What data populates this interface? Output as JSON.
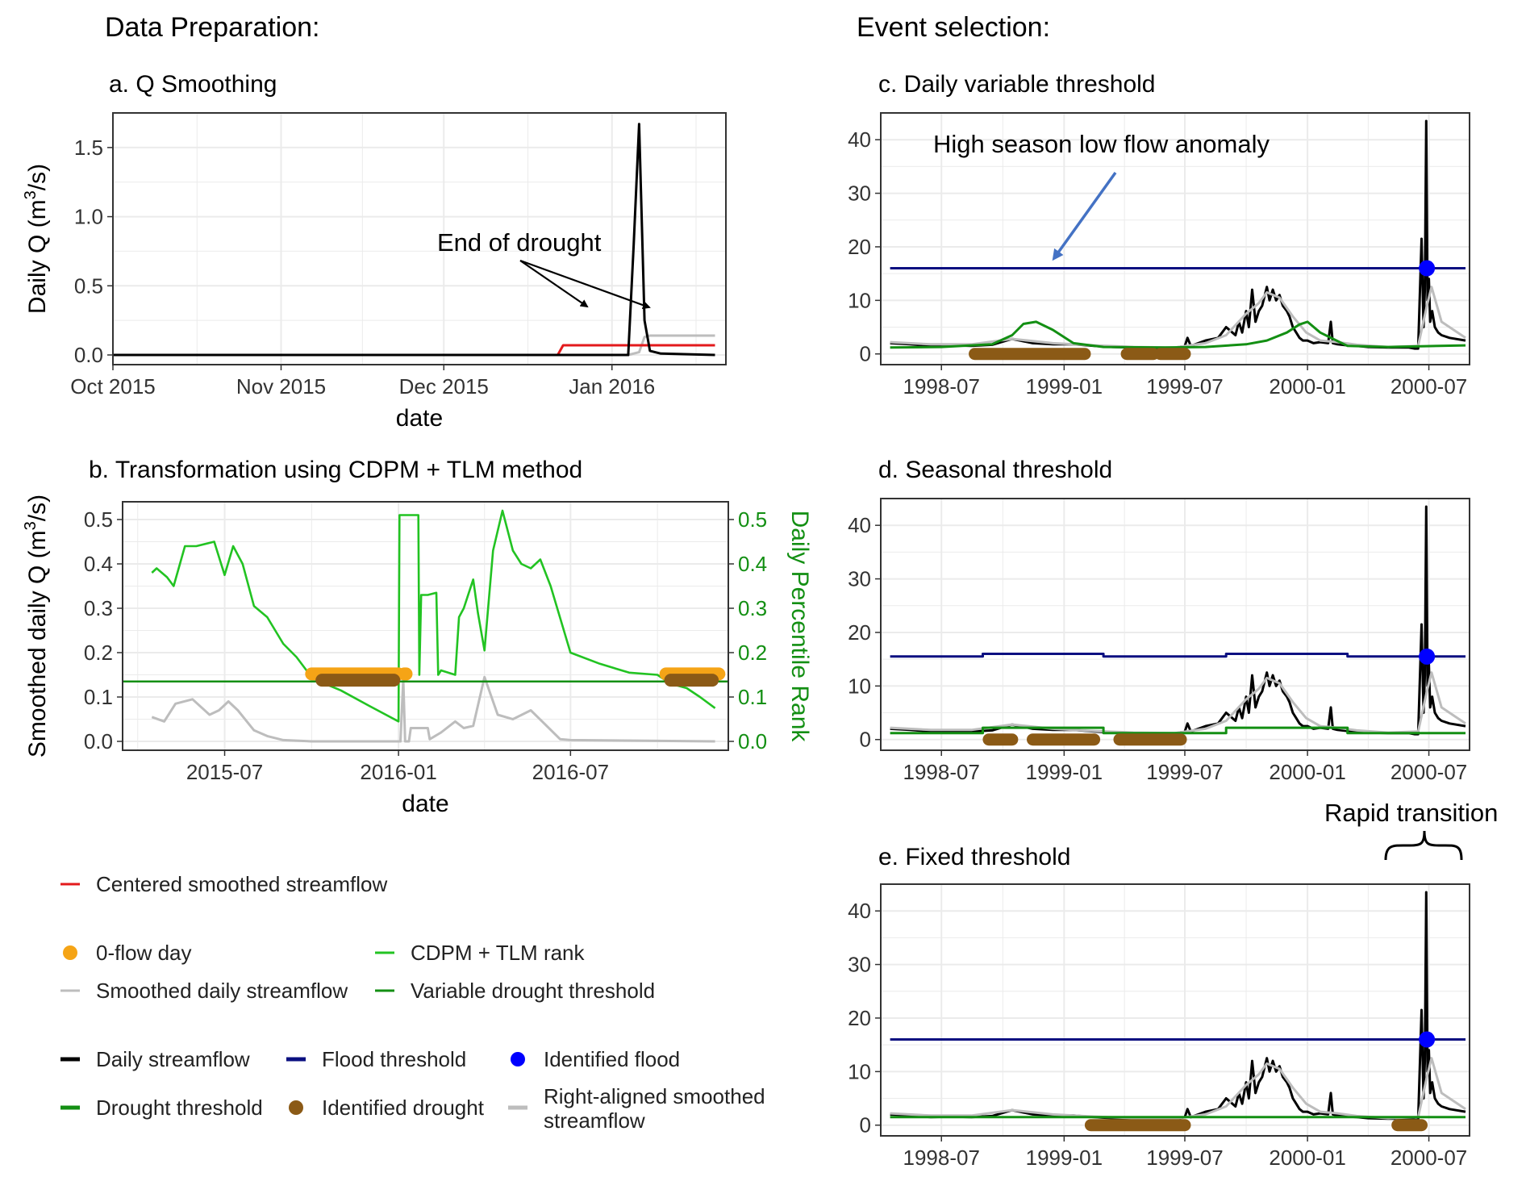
{
  "headers": {
    "left": "Data Preparation:",
    "right": "Event selection:"
  },
  "colors": {
    "daily": "#000000",
    "smooth": "#bdbdbd",
    "centered": "#e31a1c",
    "rank": "#22c322",
    "threshold": "#138f13",
    "flood": "#0a0f80",
    "flood_point": "#0000ff",
    "drought": "#8b5a16",
    "zero_flow": "#f5a416",
    "arrow_blue": "#4472c4"
  },
  "chart_data": [
    {
      "id": "a",
      "type": "line",
      "title": "a. Q Smoothing",
      "xlabel": "date",
      "ylabel": "Daily Q (m³/s)",
      "ylabel_parts": [
        "Daily Q (m",
        "3",
        "/s)"
      ],
      "xlim": [
        "2015-10-01",
        "2016-01-22"
      ],
      "ylim": [
        -0.07,
        1.75
      ],
      "x_ticks": [
        {
          "value": "2015-10-01",
          "label": "Oct 2015"
        },
        {
          "value": "2015-11-01",
          "label": "Nov 2015"
        },
        {
          "value": "2015-12-01",
          "label": "Dec 2015"
        },
        {
          "value": "2016-01-01",
          "label": "Jan 2016"
        }
      ],
      "y_ticks": [
        0,
        0.5,
        1.0,
        1.5
      ],
      "y_tick_labels": [
        "0.0",
        "0.5",
        "1.0",
        "1.5"
      ],
      "series": [
        {
          "role": "smooth",
          "x": [
            "2015-10-01",
            "2015-12-28",
            "2016-01-04",
            "2016-01-06",
            "2016-01-07",
            "2016-01-08",
            "2016-01-20"
          ],
          "y": [
            0,
            0,
            0,
            0.02,
            0.13,
            0.14,
            0.14
          ]
        },
        {
          "role": "centered",
          "x": [
            "2015-10-01",
            "2015-12-22",
            "2015-12-23",
            "2016-01-20"
          ],
          "y": [
            0,
            0,
            0.07,
            0.07
          ]
        },
        {
          "role": "daily",
          "x": [
            "2015-10-01",
            "2016-01-04",
            "2016-01-05",
            "2016-01-06",
            "2016-01-07",
            "2016-01-08",
            "2016-01-10",
            "2016-01-20"
          ],
          "y": [
            0,
            0,
            0.8,
            1.67,
            0.25,
            0.03,
            0.01,
            0
          ]
        }
      ],
      "annotations": [
        {
          "text": "End of drought"
        }
      ]
    },
    {
      "id": "b",
      "type": "line",
      "title": "b. Transformation using CDPM + TLM method",
      "xlabel": "date",
      "ylabel": "Smoothed daily Q (m³/s)",
      "ylabel_parts": [
        "Smoothed daily Q (m",
        "3",
        "/s)"
      ],
      "y2label": "Daily Percentile Rank",
      "xlim": [
        "2015-03-15",
        "2016-12-15"
      ],
      "ylim": [
        -0.02,
        0.54
      ],
      "x_ticks": [
        {
          "value": "2015-07-01",
          "label": "2015-07"
        },
        {
          "value": "2016-01-01",
          "label": "2016-01"
        },
        {
          "value": "2016-07-01",
          "label": "2016-07"
        }
      ],
      "y_ticks": [
        0,
        0.1,
        0.2,
        0.3,
        0.4,
        0.5
      ],
      "y_tick_labels": [
        "0.0",
        "0.1",
        "0.2",
        "0.3",
        "0.4",
        "0.5"
      ],
      "threshold": 0.135,
      "series": [
        {
          "role": "smooth",
          "x": [
            "2015-04-15",
            "2015-04-28",
            "2015-05-10",
            "2015-05-28",
            "2015-06-15",
            "2015-06-25",
            "2015-07-05",
            "2015-07-15",
            "2015-08-01",
            "2015-08-15",
            "2015-09-01",
            "2015-10-01",
            "2015-11-01",
            "2015-12-01",
            "2016-01-03",
            "2016-01-06",
            "2016-01-08",
            "2016-01-12",
            "2016-01-14",
            "2016-02-01",
            "2016-02-03",
            "2016-02-15",
            "2016-03-01",
            "2016-03-10",
            "2016-03-20",
            "2016-04-01",
            "2016-04-15",
            "2016-05-01",
            "2016-05-20",
            "2016-06-01",
            "2016-06-20",
            "2016-07-01",
            "2016-12-01"
          ],
          "y": [
            0.055,
            0.045,
            0.085,
            0.095,
            0.06,
            0.07,
            0.09,
            0.07,
            0.025,
            0.012,
            0.003,
            0,
            0,
            0,
            0,
            0.14,
            0,
            0,
            0.03,
            0.03,
            0.005,
            0.02,
            0.045,
            0.03,
            0.035,
            0.145,
            0.06,
            0.05,
            0.07,
            0.045,
            0.005,
            0.003,
            0
          ]
        },
        {
          "role": "rank",
          "x": [
            "2015-04-15",
            "2015-04-20",
            "2015-05-01",
            "2015-05-08",
            "2015-05-20",
            "2015-06-01",
            "2015-06-20",
            "2015-07-01",
            "2015-07-10",
            "2015-07-20",
            "2015-08-01",
            "2015-08-15",
            "2015-09-01",
            "2015-09-15",
            "2015-10-01",
            "2015-10-15",
            "2015-11-01",
            "2015-12-01",
            "2016-01-01",
            "2016-01-02",
            "2016-01-22",
            "2016-01-23",
            "2016-01-25",
            "2016-02-01",
            "2016-02-10",
            "2016-02-12",
            "2016-02-15",
            "2016-03-01",
            "2016-03-05",
            "2016-03-10",
            "2016-03-20",
            "2016-03-25",
            "2016-04-01",
            "2016-04-10",
            "2016-04-20",
            "2016-05-01",
            "2016-05-10",
            "2016-05-20",
            "2016-05-30",
            "2016-06-10",
            "2016-07-01",
            "2016-08-01",
            "2016-09-01",
            "2016-10-01",
            "2016-10-15",
            "2016-11-01",
            "2016-11-15",
            "2016-12-01"
          ],
          "y": [
            0.38,
            0.39,
            0.37,
            0.35,
            0.44,
            0.44,
            0.45,
            0.375,
            0.44,
            0.4,
            0.305,
            0.28,
            0.22,
            0.19,
            0.145,
            0.13,
            0.115,
            0.08,
            0.045,
            0.51,
            0.51,
            0.15,
            0.33,
            0.33,
            0.335,
            0.15,
            0.16,
            0.15,
            0.28,
            0.3,
            0.365,
            0.29,
            0.205,
            0.43,
            0.52,
            0.43,
            0.4,
            0.39,
            0.41,
            0.35,
            0.2,
            0.175,
            0.155,
            0.15,
            0.13,
            0.12,
            0.1,
            0.075
          ]
        }
      ],
      "zero_flow_segments": [
        {
          "start": "2015-10-01",
          "end": "2016-01-01"
        },
        {
          "start": "2016-01-07",
          "end": "2016-01-09"
        },
        {
          "start": "2016-10-10",
          "end": "2016-12-05"
        }
      ],
      "drought_segments": [
        {
          "start": "2015-10-12",
          "end": "2015-12-27"
        },
        {
          "start": "2016-10-15",
          "end": "2016-11-28"
        }
      ]
    },
    {
      "id": "c",
      "type": "line",
      "title": "c. Daily variable threshold",
      "xlim": [
        "1998-04-01",
        "2000-08-31"
      ],
      "ylim": [
        -2,
        45
      ],
      "x_ticks": [
        {
          "value": "1998-07-01",
          "label": "1998-07"
        },
        {
          "value": "1999-01-01",
          "label": "1999-01"
        },
        {
          "value": "1999-07-01",
          "label": "1999-07"
        },
        {
          "value": "2000-01-01",
          "label": "2000-01"
        },
        {
          "value": "2000-07-01",
          "label": "2000-07"
        }
      ],
      "y_ticks": [
        0,
        10,
        20,
        30,
        40
      ],
      "flood_threshold": {
        "x": [
          "1998-04-15",
          "2000-08-25"
        ],
        "y": [
          16,
          16
        ]
      },
      "drought_threshold": {
        "x": [
          "1998-04-15",
          "1998-07-01",
          "1998-09-15",
          "1998-10-15",
          "1998-11-01",
          "1998-11-20",
          "1998-12-15",
          "1999-01-15",
          "1999-03-01",
          "1999-06-01",
          "1999-08-01",
          "1999-10-01",
          "1999-11-01",
          "1999-12-01",
          "1999-12-20",
          "2000-01-01",
          "2000-01-20",
          "2000-03-01",
          "2000-05-01",
          "2000-08-25"
        ],
        "y": [
          1.2,
          1.3,
          1.8,
          3.5,
          5.6,
          6.0,
          4.5,
          2.0,
          1.3,
          1.2,
          1.3,
          1.8,
          2.5,
          4.0,
          5.5,
          6.0,
          4.0,
          1.5,
          1.3,
          1.6
        ]
      },
      "drought_segments": [
        {
          "start": "1998-08-20",
          "end": "1999-02-01"
        },
        {
          "start": "1999-04-05",
          "end": "1999-05-15"
        },
        {
          "start": "1999-05-25",
          "end": "1999-07-01"
        }
      ],
      "flood_points": [
        {
          "x": "2000-06-28",
          "y": 16
        }
      ],
      "annotations": [
        {
          "text": "High season low flow anomaly"
        }
      ]
    },
    {
      "id": "d",
      "type": "line",
      "title": "d. Seasonal threshold",
      "xlim": [
        "1998-04-01",
        "2000-08-31"
      ],
      "ylim": [
        -2,
        45
      ],
      "x_ticks": [
        {
          "value": "1998-07-01",
          "label": "1998-07"
        },
        {
          "value": "1999-01-01",
          "label": "1999-01"
        },
        {
          "value": "1999-07-01",
          "label": "1999-07"
        },
        {
          "value": "2000-01-01",
          "label": "2000-01"
        },
        {
          "value": "2000-07-01",
          "label": "2000-07"
        }
      ],
      "y_ticks": [
        0,
        10,
        20,
        30,
        40
      ],
      "flood_threshold": {
        "x": [
          "1998-04-15",
          "1998-09-01",
          "1998-09-01",
          "1999-03-01",
          "1999-03-01",
          "1999-09-01",
          "1999-09-01",
          "2000-03-01",
          "2000-03-01",
          "2000-08-25"
        ],
        "y": [
          15.5,
          15.5,
          16.0,
          16.0,
          15.5,
          15.5,
          16.0,
          16.0,
          15.5,
          15.5
        ]
      },
      "drought_threshold": {
        "x": [
          "1998-04-15",
          "1998-09-01",
          "1998-09-01",
          "1999-03-01",
          "1999-03-01",
          "1999-09-01",
          "1999-09-01",
          "2000-03-01",
          "2000-03-01",
          "2000-08-25"
        ],
        "y": [
          1.2,
          1.2,
          2.2,
          2.2,
          1.2,
          1.2,
          2.2,
          2.2,
          1.2,
          1.2
        ]
      },
      "drought_segments": [
        {
          "start": "1998-09-10",
          "end": "1998-10-15"
        },
        {
          "start": "1998-11-15",
          "end": "1999-02-15"
        },
        {
          "start": "1999-03-25",
          "end": "1999-06-25"
        }
      ],
      "flood_points": [
        {
          "x": "2000-06-28",
          "y": 15.5
        }
      ]
    },
    {
      "id": "e",
      "type": "line",
      "title": "e. Fixed threshold",
      "xlim": [
        "1998-04-01",
        "2000-08-31"
      ],
      "ylim": [
        -2,
        45
      ],
      "x_ticks": [
        {
          "value": "1998-07-01",
          "label": "1998-07"
        },
        {
          "value": "1999-01-01",
          "label": "1999-01"
        },
        {
          "value": "1999-07-01",
          "label": "1999-07"
        },
        {
          "value": "2000-01-01",
          "label": "2000-01"
        },
        {
          "value": "2000-07-01",
          "label": "2000-07"
        }
      ],
      "y_ticks": [
        0,
        10,
        20,
        30,
        40
      ],
      "flood_threshold": {
        "x": [
          "1998-04-15",
          "2000-08-25"
        ],
        "y": [
          16,
          16
        ]
      },
      "drought_threshold": {
        "x": [
          "1998-04-15",
          "2000-08-25"
        ],
        "y": [
          1.5,
          1.5
        ]
      },
      "drought_segments": [
        {
          "start": "1999-02-10",
          "end": "1999-07-01"
        },
        {
          "start": "2000-05-15",
          "end": "2000-06-20"
        }
      ],
      "flood_points": [
        {
          "x": "2000-06-28",
          "y": 16
        }
      ],
      "annotations": [
        {
          "text": "Rapid transition"
        }
      ]
    }
  ],
  "shared_series": {
    "daily": {
      "x": [
        "1998-04-15",
        "1998-05-15",
        "1998-06-15",
        "1998-07-15",
        "1998-08-15",
        "1998-09-15",
        "1998-10-15",
        "1998-11-15",
        "1998-12-15",
        "1999-01-15",
        "1999-02-15",
        "1999-03-15",
        "1999-04-15",
        "1999-05-15",
        "1999-06-15",
        "1999-07-01",
        "1999-07-05",
        "1999-07-10",
        "1999-08-01",
        "1999-08-20",
        "1999-09-01",
        "1999-09-15",
        "1999-09-20",
        "1999-09-25",
        "1999-10-01",
        "1999-10-05",
        "1999-10-10",
        "1999-10-15",
        "1999-10-20",
        "1999-10-25",
        "1999-11-01",
        "1999-11-05",
        "1999-11-10",
        "1999-11-15",
        "1999-11-20",
        "1999-11-25",
        "1999-12-01",
        "1999-12-05",
        "1999-12-10",
        "1999-12-15",
        "1999-12-20",
        "1999-12-25",
        "2000-01-01",
        "2000-01-10",
        "2000-01-20",
        "2000-02-01",
        "2000-02-05",
        "2000-02-08",
        "2000-02-15",
        "2000-03-01",
        "2000-03-15",
        "2000-04-01",
        "2000-05-01",
        "2000-06-01",
        "2000-06-10",
        "2000-06-15",
        "2000-06-20",
        "2000-06-23",
        "2000-06-25",
        "2000-06-27",
        "2000-06-29",
        "2000-07-01",
        "2000-07-03",
        "2000-07-06",
        "2000-07-10",
        "2000-07-15",
        "2000-07-20",
        "2000-08-01",
        "2000-08-25"
      ],
      "y": [
        2.0,
        1.8,
        1.5,
        1.6,
        1.5,
        1.7,
        2.8,
        2.0,
        1.8,
        1.8,
        1.5,
        1.3,
        1.2,
        1.0,
        1.1,
        1.5,
        3.0,
        1.5,
        2.5,
        3.0,
        5.0,
        3.5,
        6.0,
        4.0,
        8.0,
        5.0,
        12.0,
        6.0,
        8.0,
        9.0,
        12.5,
        10.0,
        12.0,
        10.0,
        11.0,
        9.0,
        8.0,
        7.0,
        5.0,
        4.0,
        3.0,
        2.5,
        2.5,
        2.0,
        2.2,
        2.0,
        6.0,
        2.0,
        1.8,
        1.6,
        1.5,
        1.3,
        1.2,
        1.2,
        1.0,
        1.0,
        21.5,
        5.0,
        12.0,
        43.5,
        10.0,
        14.0,
        6.0,
        8.0,
        5.0,
        4.0,
        3.5,
        3.0,
        2.5
      ]
    },
    "smooth": {
      "x": [
        "1998-04-15",
        "1998-06-15",
        "1998-08-15",
        "1998-10-15",
        "1998-12-15",
        "1999-02-15",
        "1999-04-15",
        "1999-06-15",
        "1999-08-01",
        "1999-09-01",
        "1999-10-01",
        "1999-10-20",
        "1999-11-01",
        "1999-11-20",
        "1999-12-10",
        "1999-12-30",
        "2000-01-20",
        "2000-02-15",
        "2000-03-15",
        "2000-05-01",
        "2000-06-15",
        "2000-06-28",
        "2000-07-05",
        "2000-07-20",
        "2000-08-25"
      ],
      "y": [
        2.2,
        1.8,
        1.8,
        2.8,
        2.0,
        1.6,
        1.3,
        1.2,
        2.0,
        3.5,
        7.5,
        9.5,
        11.5,
        10.5,
        7.0,
        4.0,
        2.5,
        2.2,
        1.7,
        1.3,
        1.5,
        9.0,
        12.5,
        6.0,
        3.0
      ]
    }
  },
  "legend": {
    "row1": [
      {
        "role": "centered",
        "label": "Centered smoothed streamflow"
      }
    ],
    "row2": [
      {
        "role": "zero_flow",
        "label": "0-flow day"
      },
      {
        "role": "rank",
        "label": "CDPM + TLM rank"
      }
    ],
    "row3": [
      {
        "role": "smooth",
        "label": "Smoothed daily streamflow"
      },
      {
        "role": "threshold",
        "label": "Variable drought threshold"
      }
    ],
    "row4": [
      {
        "role": "daily",
        "label": "Daily streamflow"
      },
      {
        "role": "flood",
        "label": "Flood threshold"
      },
      {
        "role": "flood_point",
        "label": "Identified flood"
      }
    ],
    "row5": [
      {
        "role": "threshold",
        "label": "Drought threshold"
      },
      {
        "role": "drought",
        "label": "Identified drought"
      },
      {
        "role": "smooth",
        "label": "Right-aligned smoothed",
        "label2": "streamflow"
      }
    ]
  }
}
